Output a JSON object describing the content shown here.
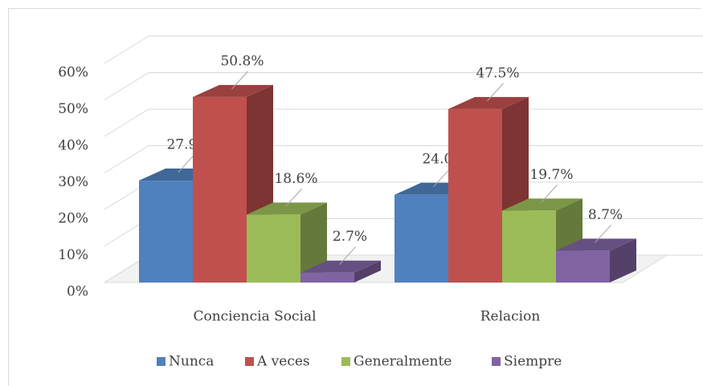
{
  "chart_data": {
    "type": "bar3d",
    "categories": [
      "Conciencia Social",
      "Relacion"
    ],
    "series": [
      {
        "name": "Nunca",
        "color": "#4f81bd",
        "values": [
          27.9,
          24.0
        ],
        "value_labels": [
          "27.9%",
          "24.0%"
        ]
      },
      {
        "name": "A veces",
        "color": "#c0504d",
        "values": [
          50.8,
          47.5
        ],
        "value_labels": [
          "50.8%",
          "47.5%"
        ]
      },
      {
        "name": "Generalmente",
        "color": "#9bbb59",
        "values": [
          18.6,
          19.7
        ],
        "value_labels": [
          "18.6%",
          "19.7%"
        ]
      },
      {
        "name": "Siempre",
        "color": "#8064a2",
        "values": [
          2.7,
          8.7
        ],
        "value_labels": [
          "2.7%",
          "8.7%"
        ]
      }
    ],
    "ylim": [
      0,
      60
    ],
    "yticks": [
      {
        "value": 0,
        "label": "0%"
      },
      {
        "value": 10,
        "label": "10%"
      },
      {
        "value": 20,
        "label": "20%"
      },
      {
        "value": 30,
        "label": "30%"
      },
      {
        "value": 40,
        "label": "40%"
      },
      {
        "value": 50,
        "label": "50%"
      },
      {
        "value": 60,
        "label": "60%"
      }
    ],
    "grid": true,
    "legend": "bottom"
  }
}
